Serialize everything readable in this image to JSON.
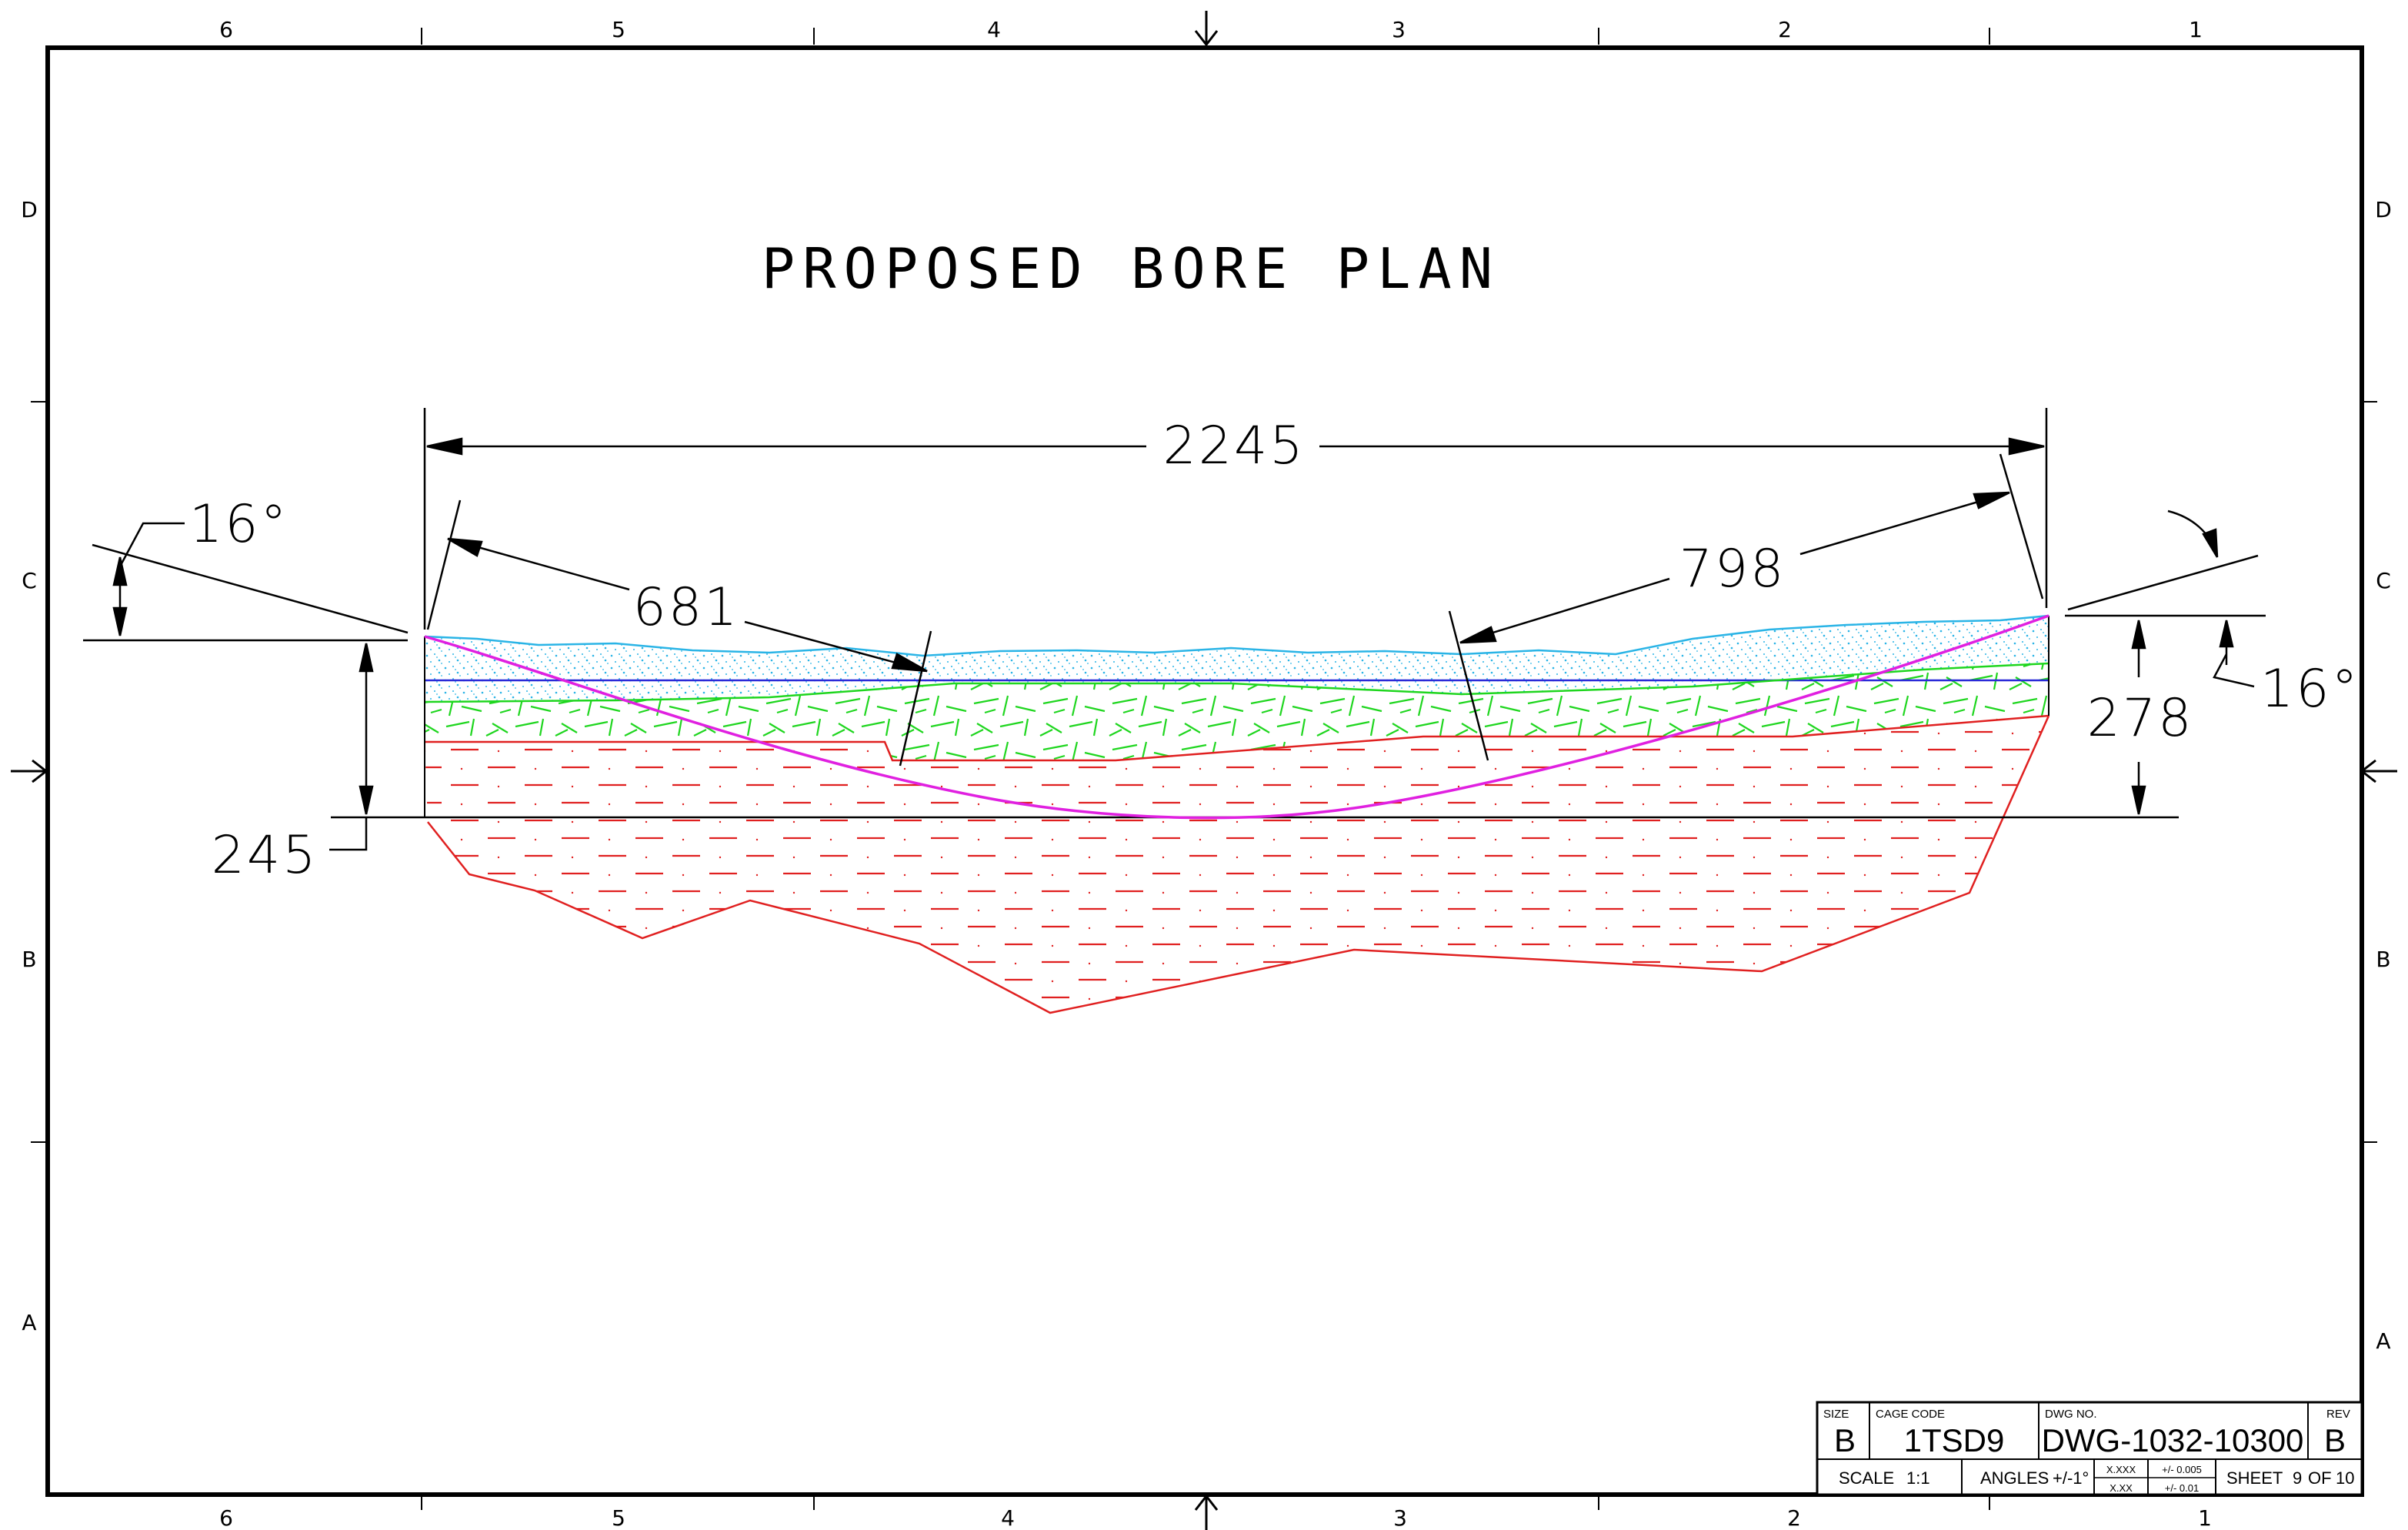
{
  "title": "PROPOSED BORE PLAN",
  "zones": {
    "columns": [
      "6",
      "5",
      "4",
      "3",
      "2",
      "1"
    ],
    "rows": [
      "D",
      "C",
      "B",
      "A"
    ]
  },
  "dimensions": {
    "total_length": "2245",
    "entry_length": "681",
    "exit_length": "798",
    "entry_angle": "16°",
    "exit_angle": "16°",
    "entry_depth": "245",
    "exit_depth": "278"
  },
  "title_block": {
    "size_label": "SIZE",
    "size": "B",
    "cage_code_label": "CAGE CODE",
    "cage_code": "1TSD9",
    "dwg_no_label": "DWG NO.",
    "dwg_no": "DWG-1032-10300",
    "rev_label": "REV",
    "rev": "B",
    "scale_label": "SCALE",
    "scale": "1:1",
    "angles_label": "ANGLES",
    "angles_tol": "+/-1°",
    "xxx_label": "X.XXX",
    "xxx_tol": "+/- 0.005",
    "xx_label": "X.XX",
    "xx_tol": "+/- 0.01",
    "sheet_label": "SHEET",
    "sheet": "9",
    "of_label": "OF",
    "sheet_total": "10"
  },
  "colors": {
    "sand": "#2ab4e6",
    "clay": "#1fd61f",
    "rock": "#e02020",
    "bore_path": "#e020e0",
    "water_table": "#2a2ad8",
    "border": "#000000"
  }
}
